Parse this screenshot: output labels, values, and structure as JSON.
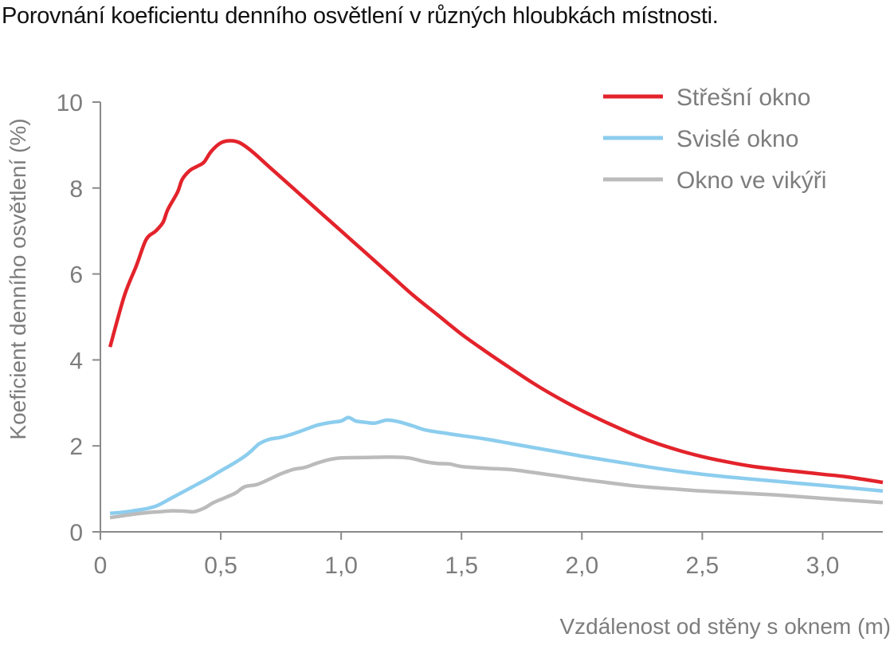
{
  "chart_data": {
    "type": "line",
    "title": "Porovnání koeficientu denního osvětlení v různých hloubkách místnosti.",
    "xlabel": "Vzdálenost od stěny s oknem (m)",
    "ylabel": "Koeficient denního osvětlení (%)",
    "xlim": [
      0,
      3.25
    ],
    "ylim": [
      0,
      10
    ],
    "x_ticks": [
      0,
      0.5,
      1.0,
      1.5,
      2.0,
      2.5,
      3.0
    ],
    "x_tick_labels": [
      "0",
      "0,5",
      "1,0",
      "1,5",
      "2,0",
      "2,5",
      "3,0"
    ],
    "y_ticks": [
      0,
      2,
      4,
      6,
      8,
      10
    ],
    "y_tick_labels": [
      "0",
      "2",
      "4",
      "6",
      "8",
      "10"
    ],
    "grid": false,
    "legend_position": "top-right",
    "series": [
      {
        "name": "Střešní okno",
        "color": "#e3232b",
        "points": [
          [
            0.04,
            4.3
          ],
          [
            0.1,
            5.5
          ],
          [
            0.15,
            6.2
          ],
          [
            0.19,
            6.8
          ],
          [
            0.23,
            7.0
          ],
          [
            0.26,
            7.2
          ],
          [
            0.28,
            7.5
          ],
          [
            0.32,
            7.9
          ],
          [
            0.34,
            8.2
          ],
          [
            0.37,
            8.4
          ],
          [
            0.4,
            8.5
          ],
          [
            0.43,
            8.6
          ],
          [
            0.46,
            8.85
          ],
          [
            0.5,
            9.05
          ],
          [
            0.54,
            9.1
          ],
          [
            0.58,
            9.05
          ],
          [
            0.63,
            8.85
          ],
          [
            0.7,
            8.5
          ],
          [
            0.8,
            8.0
          ],
          [
            0.9,
            7.5
          ],
          [
            1.0,
            7.0
          ],
          [
            1.1,
            6.5
          ],
          [
            1.2,
            6.0
          ],
          [
            1.3,
            5.5
          ],
          [
            1.4,
            5.05
          ],
          [
            1.5,
            4.6
          ],
          [
            1.6,
            4.2
          ],
          [
            1.7,
            3.82
          ],
          [
            1.8,
            3.45
          ],
          [
            1.9,
            3.12
          ],
          [
            2.0,
            2.82
          ],
          [
            2.1,
            2.55
          ],
          [
            2.2,
            2.3
          ],
          [
            2.3,
            2.08
          ],
          [
            2.4,
            1.9
          ],
          [
            2.5,
            1.75
          ],
          [
            2.6,
            1.63
          ],
          [
            2.7,
            1.53
          ],
          [
            2.8,
            1.46
          ],
          [
            2.9,
            1.4
          ],
          [
            3.0,
            1.34
          ],
          [
            3.1,
            1.28
          ],
          [
            3.25,
            1.15
          ]
        ]
      },
      {
        "name": "Svislé okno",
        "color": "#8ccdee",
        "points": [
          [
            0.04,
            0.43
          ],
          [
            0.1,
            0.46
          ],
          [
            0.15,
            0.5
          ],
          [
            0.2,
            0.55
          ],
          [
            0.24,
            0.62
          ],
          [
            0.3,
            0.8
          ],
          [
            0.35,
            0.95
          ],
          [
            0.4,
            1.1
          ],
          [
            0.45,
            1.25
          ],
          [
            0.5,
            1.42
          ],
          [
            0.55,
            1.58
          ],
          [
            0.6,
            1.76
          ],
          [
            0.63,
            1.9
          ],
          [
            0.66,
            2.05
          ],
          [
            0.7,
            2.15
          ],
          [
            0.75,
            2.2
          ],
          [
            0.8,
            2.28
          ],
          [
            0.85,
            2.38
          ],
          [
            0.9,
            2.48
          ],
          [
            0.95,
            2.54
          ],
          [
            1.0,
            2.58
          ],
          [
            1.03,
            2.66
          ],
          [
            1.06,
            2.58
          ],
          [
            1.1,
            2.55
          ],
          [
            1.14,
            2.53
          ],
          [
            1.19,
            2.6
          ],
          [
            1.24,
            2.56
          ],
          [
            1.3,
            2.46
          ],
          [
            1.35,
            2.37
          ],
          [
            1.45,
            2.28
          ],
          [
            1.5,
            2.24
          ],
          [
            1.6,
            2.16
          ],
          [
            1.7,
            2.06
          ],
          [
            1.8,
            1.96
          ],
          [
            1.9,
            1.86
          ],
          [
            2.0,
            1.76
          ],
          [
            2.1,
            1.67
          ],
          [
            2.2,
            1.58
          ],
          [
            2.3,
            1.49
          ],
          [
            2.4,
            1.41
          ],
          [
            2.5,
            1.34
          ],
          [
            2.6,
            1.28
          ],
          [
            2.7,
            1.23
          ],
          [
            2.8,
            1.18
          ],
          [
            2.9,
            1.13
          ],
          [
            3.0,
            1.08
          ],
          [
            3.1,
            1.03
          ],
          [
            3.25,
            0.95
          ]
        ]
      },
      {
        "name": "Okno ve vikýři",
        "color": "#bbbbbb",
        "points": [
          [
            0.04,
            0.33
          ],
          [
            0.1,
            0.38
          ],
          [
            0.15,
            0.42
          ],
          [
            0.2,
            0.45
          ],
          [
            0.25,
            0.47
          ],
          [
            0.3,
            0.49
          ],
          [
            0.35,
            0.48
          ],
          [
            0.39,
            0.47
          ],
          [
            0.43,
            0.55
          ],
          [
            0.47,
            0.68
          ],
          [
            0.52,
            0.8
          ],
          [
            0.56,
            0.9
          ],
          [
            0.6,
            1.05
          ],
          [
            0.65,
            1.1
          ],
          [
            0.7,
            1.22
          ],
          [
            0.75,
            1.35
          ],
          [
            0.8,
            1.45
          ],
          [
            0.85,
            1.5
          ],
          [
            0.9,
            1.6
          ],
          [
            0.95,
            1.68
          ],
          [
            1.0,
            1.72
          ],
          [
            1.1,
            1.73
          ],
          [
            1.2,
            1.74
          ],
          [
            1.28,
            1.72
          ],
          [
            1.35,
            1.63
          ],
          [
            1.4,
            1.59
          ],
          [
            1.45,
            1.58
          ],
          [
            1.5,
            1.52
          ],
          [
            1.6,
            1.48
          ],
          [
            1.7,
            1.45
          ],
          [
            1.8,
            1.38
          ],
          [
            1.9,
            1.3
          ],
          [
            2.0,
            1.22
          ],
          [
            2.1,
            1.15
          ],
          [
            2.2,
            1.08
          ],
          [
            2.3,
            1.03
          ],
          [
            2.4,
            0.99
          ],
          [
            2.5,
            0.95
          ],
          [
            2.6,
            0.92
          ],
          [
            2.7,
            0.89
          ],
          [
            2.8,
            0.86
          ],
          [
            2.9,
            0.82
          ],
          [
            3.0,
            0.78
          ],
          [
            3.1,
            0.74
          ],
          [
            3.25,
            0.68
          ]
        ]
      }
    ]
  }
}
